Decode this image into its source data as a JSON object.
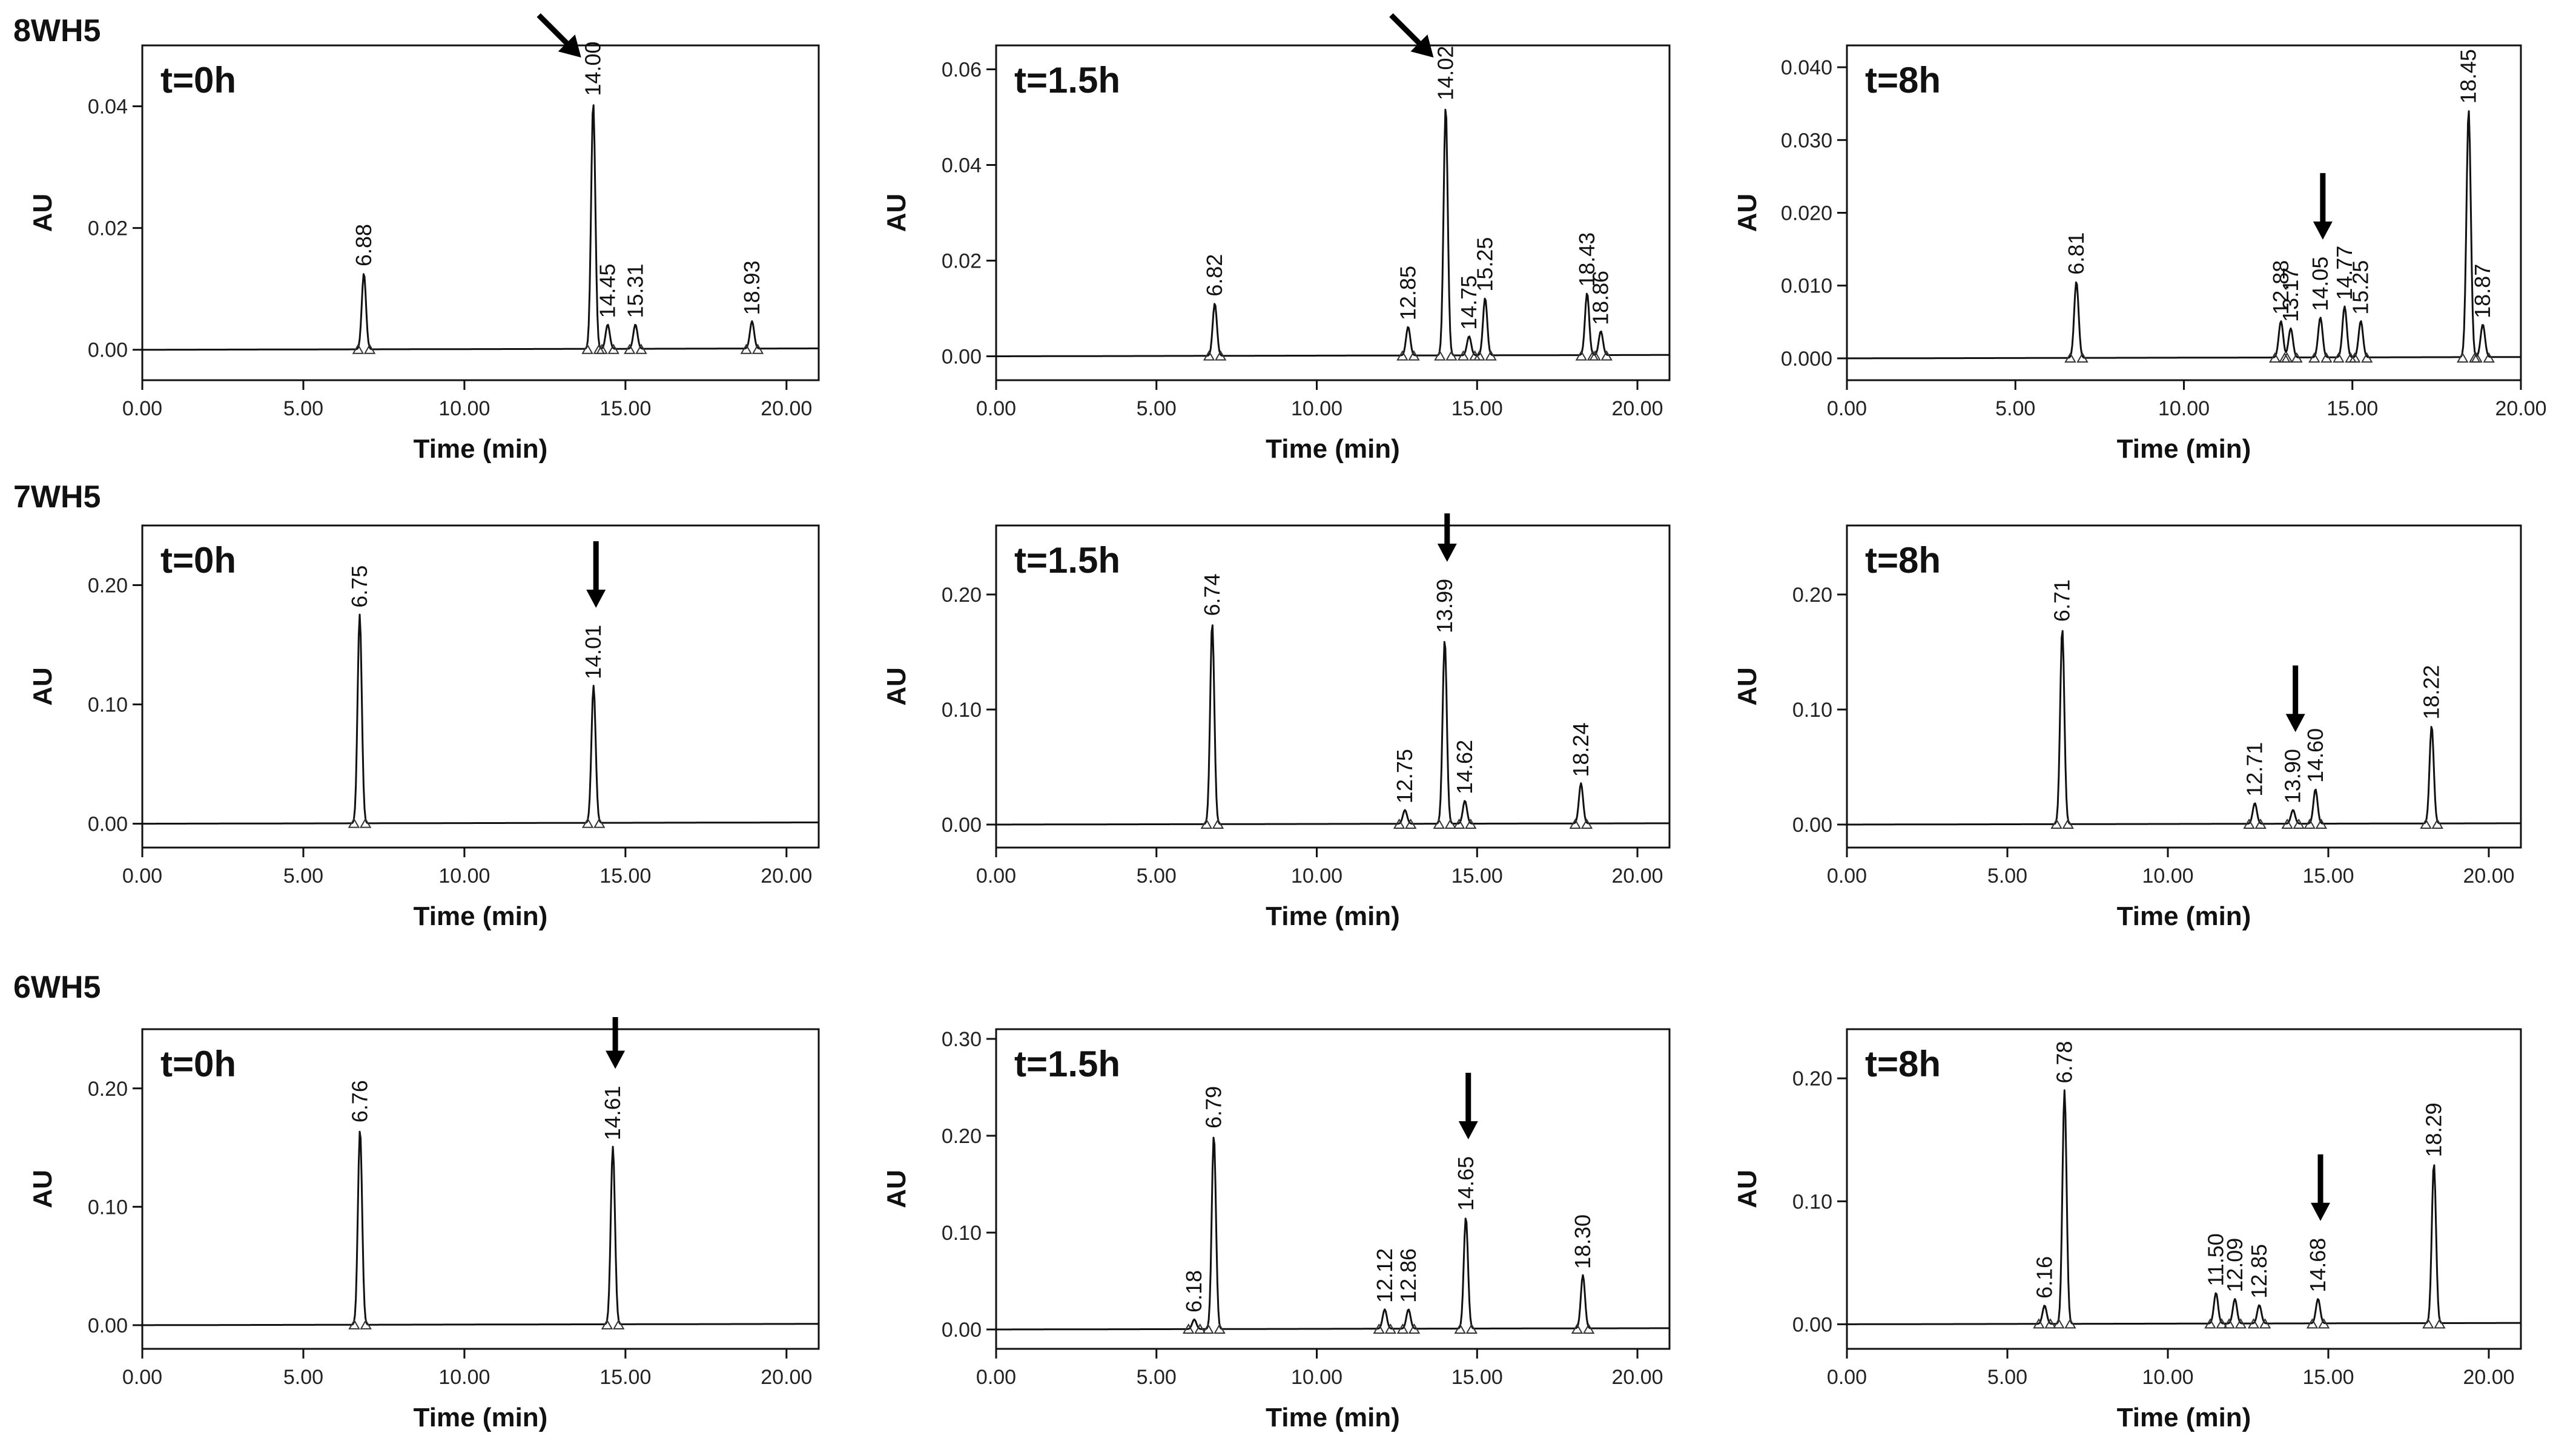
{
  "figure": {
    "row_labels": [
      "8WH5",
      "7WH5",
      "6WH5"
    ]
  },
  "chart_data": [
    {
      "type": "line",
      "row": 0,
      "col": 0,
      "compound": "8WH5",
      "title": "t=0h",
      "xlabel": "Time (min)",
      "ylabel": "AU",
      "xlim": [
        0,
        21
      ],
      "ylim": [
        -0.005,
        0.05
      ],
      "xticks": [
        0,
        5,
        10,
        15,
        20
      ],
      "xtick_labels": [
        "0.00",
        "5.00",
        "10.00",
        "15.00",
        "20.00"
      ],
      "yticks": [
        0,
        0.02,
        0.04
      ],
      "ytick_labels": [
        "0.00",
        "0.02",
        "0.04"
      ],
      "peaks": [
        {
          "rt": 6.88,
          "label": "6.88",
          "height": 0.0125
        },
        {
          "rt": 14.0,
          "label": "14.00",
          "height": 0.0405
        },
        {
          "rt": 14.45,
          "label": "14.45",
          "height": 0.004
        },
        {
          "rt": 15.31,
          "label": "15.31",
          "height": 0.004
        },
        {
          "rt": 18.93,
          "label": "18.93",
          "height": 0.0045
        }
      ],
      "arrow": {
        "rt": 14.0,
        "direction": "diagonal"
      }
    },
    {
      "type": "line",
      "row": 0,
      "col": 1,
      "compound": "8WH5",
      "title": "t=1.5h",
      "xlabel": "Time (min)",
      "ylabel": "AU",
      "xlim": [
        0,
        21
      ],
      "ylim": [
        -0.005,
        0.065
      ],
      "xticks": [
        0,
        5,
        10,
        15,
        20
      ],
      "xtick_labels": [
        "0.00",
        "5.00",
        "10.00",
        "15.00",
        "20.00"
      ],
      "yticks": [
        0,
        0.02,
        0.04,
        0.06
      ],
      "ytick_labels": [
        "0.00",
        "0.02",
        "0.04",
        "0.06"
      ],
      "peaks": [
        {
          "rt": 6.82,
          "label": "6.82",
          "height": 0.011
        },
        {
          "rt": 12.85,
          "label": "12.85",
          "height": 0.006
        },
        {
          "rt": 14.02,
          "label": "14.02",
          "height": 0.052
        },
        {
          "rt": 14.75,
          "label": "14.75",
          "height": 0.004
        },
        {
          "rt": 15.25,
          "label": "15.25",
          "height": 0.012
        },
        {
          "rt": 18.43,
          "label": "18.43",
          "height": 0.013
        },
        {
          "rt": 18.86,
          "label": "18.86",
          "height": 0.005
        }
      ],
      "arrow": {
        "rt": 14.02,
        "direction": "diagonal"
      }
    },
    {
      "type": "line",
      "row": 0,
      "col": 2,
      "compound": "8WH5",
      "title": "t=8h",
      "xlabel": "Time (min)",
      "ylabel": "AU",
      "xlim": [
        0,
        20
      ],
      "ylim": [
        -0.003,
        0.043
      ],
      "xticks": [
        0,
        5,
        10,
        15,
        20
      ],
      "xtick_labels": [
        "0.00",
        "5.00",
        "10.00",
        "15.00",
        "20.00"
      ],
      "yticks": [
        0,
        0.01,
        0.02,
        0.03,
        0.04
      ],
      "ytick_labels": [
        "0.000",
        "0.010",
        "0.020",
        "0.030",
        "0.040"
      ],
      "peaks": [
        {
          "rt": 6.81,
          "label": "6.81",
          "height": 0.0105
        },
        {
          "rt": 12.88,
          "label": "12.88",
          "height": 0.005
        },
        {
          "rt": 13.17,
          "label": "13.17",
          "height": 0.004
        },
        {
          "rt": 14.05,
          "label": "14.05",
          "height": 0.0055
        },
        {
          "rt": 14.77,
          "label": "14.77",
          "height": 0.007
        },
        {
          "rt": 15.25,
          "label": "15.25",
          "height": 0.005
        },
        {
          "rt": 18.45,
          "label": "18.45",
          "height": 0.034
        },
        {
          "rt": 18.87,
          "label": "18.87",
          "height": 0.0045
        }
      ],
      "arrow": {
        "rt": 14.05,
        "direction": "down"
      }
    },
    {
      "type": "line",
      "row": 1,
      "col": 0,
      "compound": "7WH5",
      "title": "t=0h",
      "xlabel": "Time (min)",
      "ylabel": "AU",
      "xlim": [
        0,
        21
      ],
      "ylim": [
        -0.02,
        0.25
      ],
      "xticks": [
        0,
        5,
        10,
        15,
        20
      ],
      "xtick_labels": [
        "0.00",
        "5.00",
        "10.00",
        "15.00",
        "20.00"
      ],
      "yticks": [
        0,
        0.1,
        0.2
      ],
      "ytick_labels": [
        "0.00",
        "0.10",
        "0.20"
      ],
      "peaks": [
        {
          "rt": 6.75,
          "label": "6.75",
          "height": 0.175
        },
        {
          "rt": 14.01,
          "label": "14.01",
          "height": 0.115
        }
      ],
      "arrow": {
        "rt": 14.01,
        "direction": "down"
      }
    },
    {
      "type": "line",
      "row": 1,
      "col": 1,
      "compound": "7WH5",
      "title": "t=1.5h",
      "xlabel": "Time (min)",
      "ylabel": "AU",
      "xlim": [
        0,
        21
      ],
      "ylim": [
        -0.02,
        0.26
      ],
      "xticks": [
        0,
        5,
        10,
        15,
        20
      ],
      "xtick_labels": [
        "0.00",
        "5.00",
        "10.00",
        "15.00",
        "20.00"
      ],
      "yticks": [
        0,
        0.1,
        0.2
      ],
      "ytick_labels": [
        "0.00",
        "0.10",
        "0.20"
      ],
      "peaks": [
        {
          "rt": 6.74,
          "label": "6.74",
          "height": 0.175
        },
        {
          "rt": 12.75,
          "label": "12.75",
          "height": 0.012
        },
        {
          "rt": 13.99,
          "label": "13.99",
          "height": 0.16
        },
        {
          "rt": 14.62,
          "label": "14.62",
          "height": 0.02
        },
        {
          "rt": 18.24,
          "label": "18.24",
          "height": 0.035
        }
      ],
      "arrow": {
        "rt": 13.99,
        "direction": "down"
      }
    },
    {
      "type": "line",
      "row": 1,
      "col": 2,
      "compound": "7WH5",
      "title": "t=8h",
      "xlabel": "Time (min)",
      "ylabel": "AU",
      "xlim": [
        0,
        21
      ],
      "ylim": [
        -0.02,
        0.26
      ],
      "xticks": [
        0,
        5,
        10,
        15,
        20
      ],
      "xtick_labels": [
        "0.00",
        "5.00",
        "10.00",
        "15.00",
        "20.00"
      ],
      "yticks": [
        0,
        0.1,
        0.2
      ],
      "ytick_labels": [
        "0.00",
        "0.10",
        "0.20"
      ],
      "peaks": [
        {
          "rt": 6.71,
          "label": "6.71",
          "height": 0.17
        },
        {
          "rt": 12.71,
          "label": "12.71",
          "height": 0.018
        },
        {
          "rt": 13.9,
          "label": "13.90",
          "height": 0.012
        },
        {
          "rt": 14.6,
          "label": "14.60",
          "height": 0.03
        },
        {
          "rt": 18.22,
          "label": "18.22",
          "height": 0.085
        }
      ],
      "arrow": {
        "rt": 13.9,
        "direction": "down"
      }
    },
    {
      "type": "line",
      "row": 2,
      "col": 0,
      "compound": "6WH5",
      "title": "t=0h",
      "xlabel": "Time (min)",
      "ylabel": "AU",
      "xlim": [
        0,
        21
      ],
      "ylim": [
        -0.02,
        0.25
      ],
      "xticks": [
        0,
        5,
        10,
        15,
        20
      ],
      "xtick_labels": [
        "0.00",
        "5.00",
        "10.00",
        "15.00",
        "20.00"
      ],
      "yticks": [
        0,
        0.1,
        0.2
      ],
      "ytick_labels": [
        "0.00",
        "0.10",
        "0.20"
      ],
      "peaks": [
        {
          "rt": 6.76,
          "label": "6.76",
          "height": 0.165
        },
        {
          "rt": 14.61,
          "label": "14.61",
          "height": 0.15
        }
      ],
      "arrow": {
        "rt": 14.61,
        "direction": "down"
      }
    },
    {
      "type": "line",
      "row": 2,
      "col": 1,
      "compound": "6WH5",
      "title": "t=1.5h",
      "xlabel": "Time (min)",
      "ylabel": "AU",
      "xlim": [
        0,
        21
      ],
      "ylim": [
        -0.02,
        0.31
      ],
      "xticks": [
        0,
        5,
        10,
        15,
        20
      ],
      "xtick_labels": [
        "0.00",
        "5.00",
        "10.00",
        "15.00",
        "20.00"
      ],
      "yticks": [
        0,
        0.1,
        0.2,
        0.3
      ],
      "ytick_labels": [
        "0.00",
        "0.10",
        "0.20",
        "0.30"
      ],
      "peaks": [
        {
          "rt": 6.18,
          "label": "6.18",
          "height": 0.01
        },
        {
          "rt": 6.79,
          "label": "6.79",
          "height": 0.2
        },
        {
          "rt": 12.12,
          "label": "12.12",
          "height": 0.02
        },
        {
          "rt": 12.86,
          "label": "12.86",
          "height": 0.02
        },
        {
          "rt": 14.65,
          "label": "14.65",
          "height": 0.115
        },
        {
          "rt": 18.3,
          "label": "18.30",
          "height": 0.055
        }
      ],
      "arrow": {
        "rt": 14.65,
        "direction": "down"
      }
    },
    {
      "type": "line",
      "row": 2,
      "col": 2,
      "compound": "6WH5",
      "title": "t=8h",
      "xlabel": "Time (min)",
      "ylabel": "AU",
      "xlim": [
        0,
        21
      ],
      "ylim": [
        -0.02,
        0.24
      ],
      "xticks": [
        0,
        5,
        10,
        15,
        20
      ],
      "xtick_labels": [
        "0.00",
        "5.00",
        "10.00",
        "15.00",
        "20.00"
      ],
      "yticks": [
        0,
        0.1,
        0.2
      ],
      "ytick_labels": [
        "0.00",
        "0.10",
        "0.20"
      ],
      "peaks": [
        {
          "rt": 6.16,
          "label": "6.16",
          "height": 0.015
        },
        {
          "rt": 6.78,
          "label": "6.78",
          "height": 0.19
        },
        {
          "rt": 11.5,
          "label": "11.50",
          "height": 0.025
        },
        {
          "rt": 12.09,
          "label": "12.09",
          "height": 0.02
        },
        {
          "rt": 12.85,
          "label": "12.85",
          "height": 0.015
        },
        {
          "rt": 14.68,
          "label": "14.68",
          "height": 0.02
        },
        {
          "rt": 18.29,
          "label": "18.29",
          "height": 0.13
        }
      ],
      "arrow": {
        "rt": 14.68,
        "direction": "down"
      }
    }
  ]
}
